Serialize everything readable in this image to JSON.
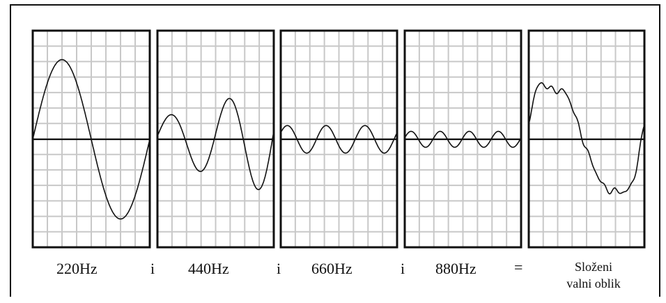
{
  "panels": [
    {
      "label": "220Hz"
    },
    {
      "label": "440Hz"
    },
    {
      "label": "660Hz"
    },
    {
      "label": "880Hz"
    },
    {
      "label_line1": "Složeni",
      "label_line2": "valni oblik"
    }
  ],
  "operators": [
    "i",
    "i",
    "i",
    "="
  ],
  "colors": {
    "grid": "#c8c8c8",
    "frame": "#111111",
    "wave": "#111111"
  }
}
